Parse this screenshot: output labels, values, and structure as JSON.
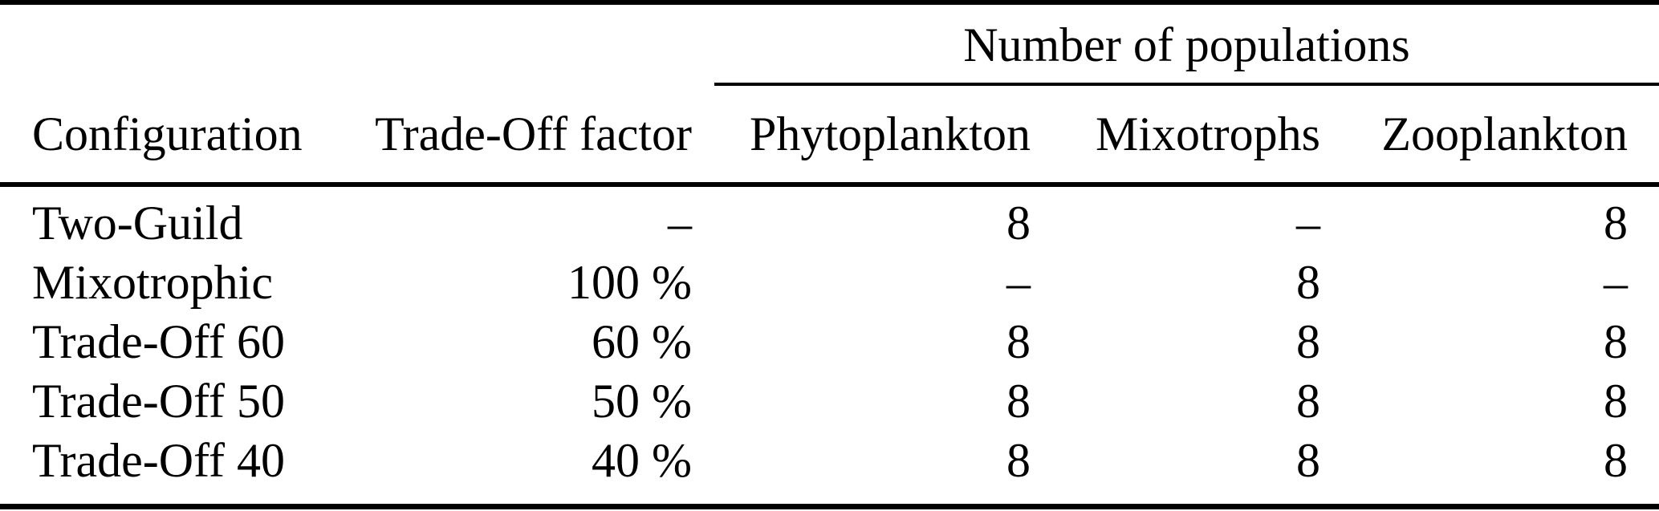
{
  "meta": {
    "colors": {
      "background": "#ffffff",
      "text": "#000000",
      "rule": "#000000"
    }
  },
  "table": {
    "span_header": "Number of populations",
    "columns": [
      "Configuration",
      "Trade-Off factor",
      "Phytoplankton",
      "Mixotrophs",
      "Zooplankton"
    ],
    "rows": [
      {
        "config": "Two-Guild",
        "tradeoff": "–",
        "phyto": "8",
        "mixo": "–",
        "zoo": "8"
      },
      {
        "config": "Mixotrophic",
        "tradeoff": "100 %",
        "phyto": "–",
        "mixo": "8",
        "zoo": "–"
      },
      {
        "config": "Trade-Off 60",
        "tradeoff": "60 %",
        "phyto": "8",
        "mixo": "8",
        "zoo": "8"
      },
      {
        "config": "Trade-Off 50",
        "tradeoff": "50 %",
        "phyto": "8",
        "mixo": "8",
        "zoo": "8"
      },
      {
        "config": "Trade-Off 40",
        "tradeoff": "40 %",
        "phyto": "8",
        "mixo": "8",
        "zoo": "8"
      }
    ]
  },
  "chart_data": {
    "type": "table",
    "span_header": {
      "label": "Number of populations",
      "spans_columns": [
        "Phytoplankton",
        "Mixotrophs",
        "Zooplankton"
      ]
    },
    "columns": [
      "Configuration",
      "Trade-Off factor",
      "Phytoplankton",
      "Mixotrophs",
      "Zooplankton"
    ],
    "rows": [
      [
        "Two-Guild",
        "–",
        "8",
        "–",
        "8"
      ],
      [
        "Mixotrophic",
        "100 %",
        "–",
        "8",
        "–"
      ],
      [
        "Trade-Off 60",
        "60 %",
        "8",
        "8",
        "8"
      ],
      [
        "Trade-Off 50",
        "50 %",
        "8",
        "8",
        "8"
      ],
      [
        "Trade-Off 40",
        "40 %",
        "8",
        "8",
        "8"
      ]
    ]
  }
}
